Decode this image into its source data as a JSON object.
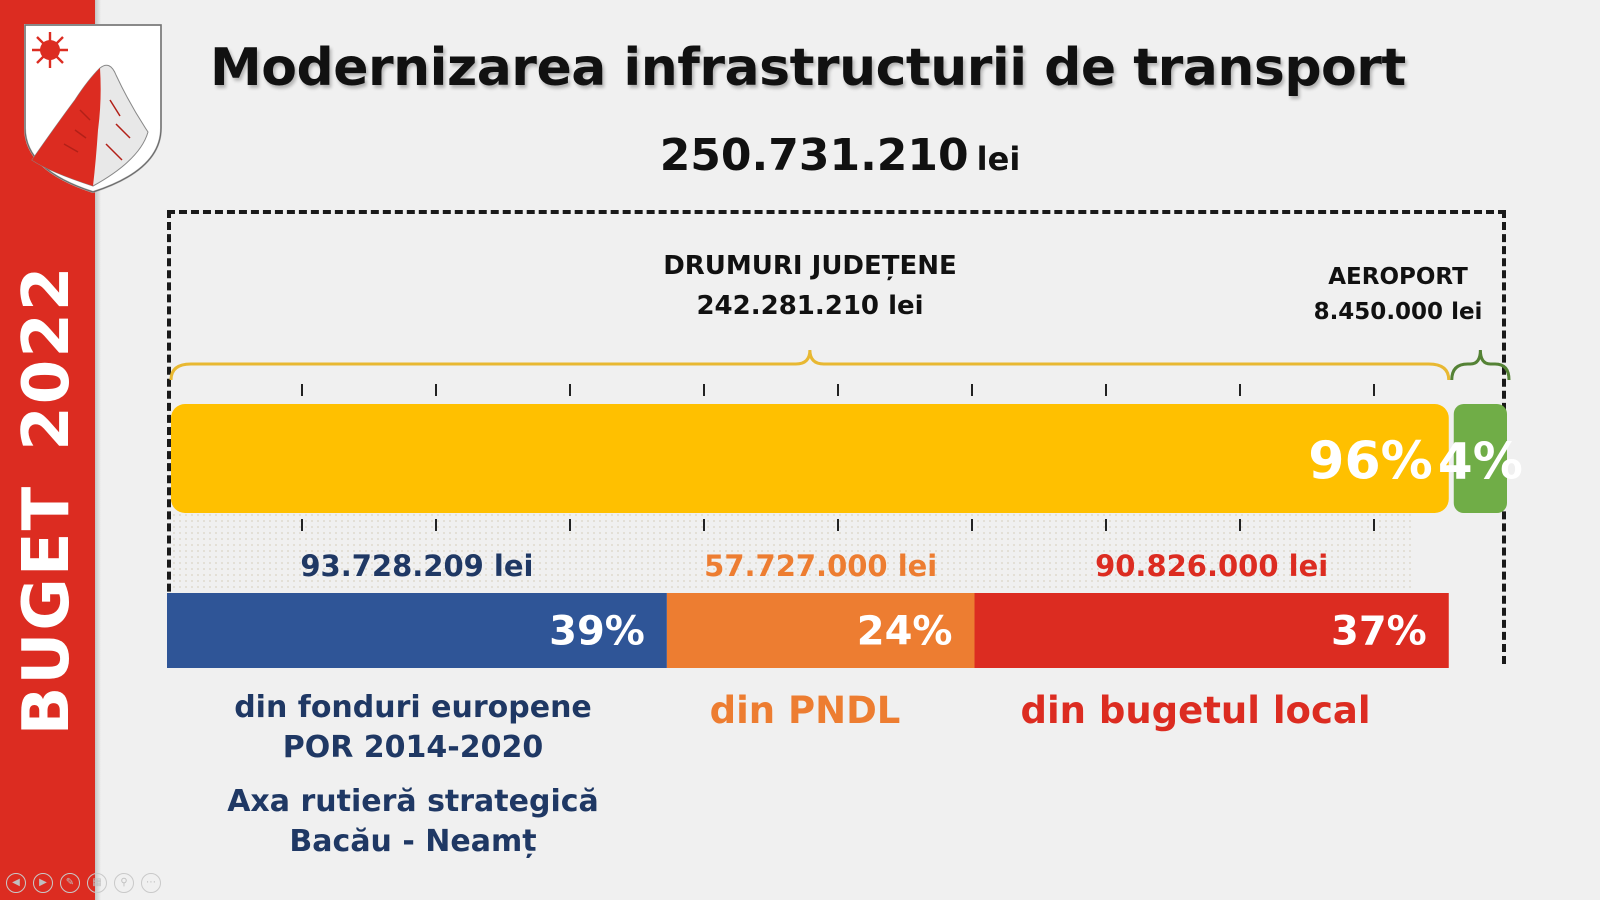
{
  "sidebar": {
    "label_word": "BUGET",
    "label_year": "2022"
  },
  "title": "Modernizarea infrastructurii de transport",
  "total": {
    "amount": "250.731.210",
    "unit": "lei"
  },
  "groups": {
    "drumuri": {
      "name": "DRUMURI JUDEȚENE",
      "amount": "242.281.210  lei"
    },
    "aeroport": {
      "name": "AEROPORT",
      "amount": "8.450.000 lei"
    }
  },
  "sources": {
    "eu": {
      "line1": "din fonduri europene",
      "line2": "POR 2014-2020",
      "line3": "Axa rutieră strategică",
      "line4": "Bacău - Neamț"
    },
    "pndl": {
      "line1": "din PNDL"
    },
    "local": {
      "line1": "din bugetul local"
    }
  },
  "chart_data": [
    {
      "type": "bar",
      "orientation": "horizontal-stacked",
      "categories": [
        "DRUMURI JUDEȚENE",
        "AEROPORT"
      ],
      "values": [
        96,
        4
      ],
      "value_labels": [
        "96%",
        "4%"
      ],
      "amounts_lei": [
        242281210,
        8450000
      ],
      "colors": [
        "#ffc000",
        "#70ad47"
      ]
    },
    {
      "type": "bar",
      "orientation": "horizontal-stacked",
      "categories": [
        "din fonduri europene",
        "din PNDL",
        "din bugetul local"
      ],
      "values": [
        39,
        24,
        37
      ],
      "value_labels": [
        "39%",
        "24%",
        "37%"
      ],
      "amount_labels": [
        "93.728.209 lei",
        "57.727.000 lei",
        "90.826.000 lei"
      ],
      "colors": [
        "#2f5597",
        "#ed7d31",
        "#dc2c21"
      ],
      "label_colors": [
        "#1f3864",
        "#ed7d31",
        "#dc2c21"
      ]
    }
  ],
  "controls": [
    "prev-icon",
    "next-icon",
    "pen-icon",
    "slides-icon",
    "zoom-icon",
    "more-icon"
  ]
}
